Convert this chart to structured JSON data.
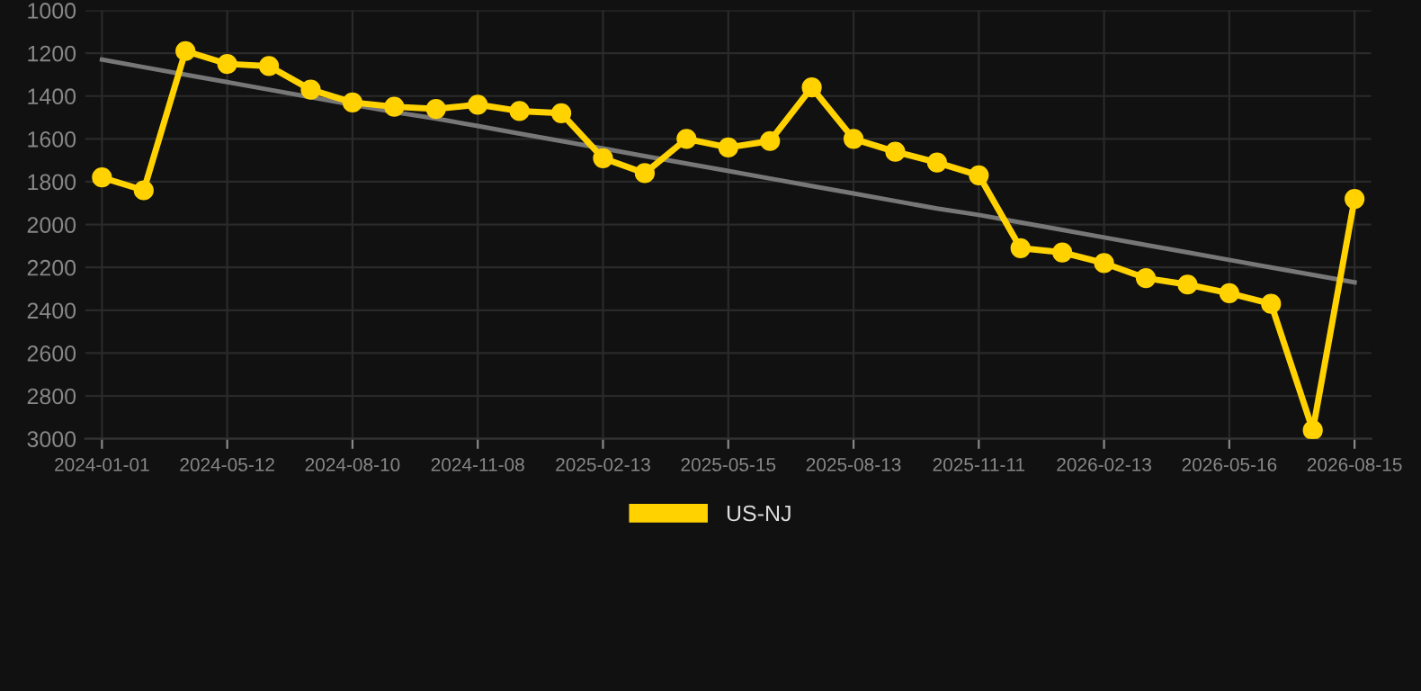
{
  "chart_data": {
    "type": "line",
    "categories": [
      "2024-01-01",
      null,
      null,
      "2024-05-12",
      null,
      null,
      "2024-08-10",
      null,
      null,
      "2024-11-08",
      null,
      null,
      "2025-02-13",
      null,
      null,
      "2025-05-15",
      null,
      null,
      "2025-08-13",
      null,
      null,
      "2025-11-11",
      null,
      null,
      "2026-02-13",
      null,
      null,
      "2026-05-16",
      null,
      null,
      "2026-08-15"
    ],
    "series": [
      {
        "name": "US-NJ",
        "color": "#ffd200",
        "marker": "circle",
        "values": [
          1780,
          1840,
          1190,
          1250,
          1260,
          1370,
          1430,
          1450,
          1460,
          1440,
          1470,
          1480,
          1690,
          1760,
          1600,
          1640,
          1610,
          1360,
          1600,
          1660,
          1710,
          1770,
          2110,
          2130,
          2180,
          2250,
          2280,
          2320,
          2370,
          2960,
          1880
        ]
      },
      {
        "color": "#777777",
        "marker": "none",
        "values": [
          1230,
          1265,
          1300,
          1335,
          1370,
          1405,
          1440,
          1475,
          1505,
          1540,
          1575,
          1610,
          1645,
          1680,
          1715,
          1750,
          1785,
          1820,
          1855,
          1890,
          1925,
          1955,
          1990,
          2025,
          2060,
          2095,
          2130,
          2165,
          2200,
          2235,
          2270
        ]
      }
    ],
    "ylim": [
      3000,
      1000
    ],
    "yticks": [
      1000,
      1200,
      1400,
      1600,
      1800,
      2000,
      2200,
      2400,
      2600,
      2800,
      3000
    ],
    "grid": true,
    "legend": "bottom"
  }
}
